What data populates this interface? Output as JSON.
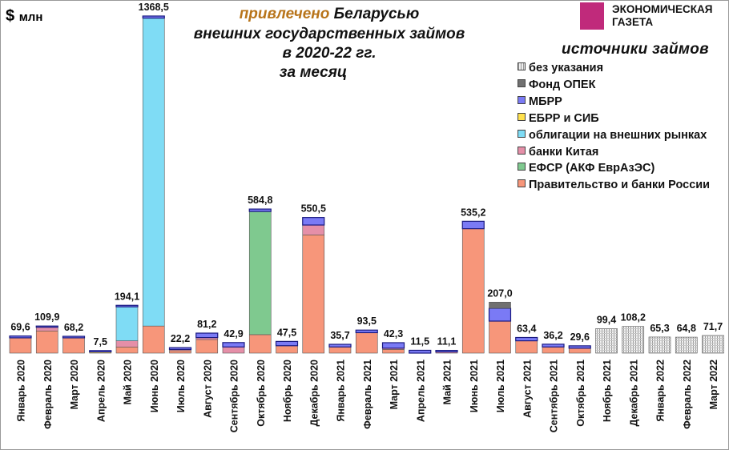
{
  "header": {
    "unit": "$",
    "unit_suffix": "млн",
    "title_highlight": "привлечено",
    "title_rest": "Беларусью",
    "title_line2": "внешних государственных займов",
    "title_line3": "в 2020-22 гг.",
    "title_line4": "за месяц",
    "logo": "ЭКОНОМИЧЕСКАЯ ГАЗЕТА",
    "logo_line1": "ЭКОНОМИЧЕСКАЯ",
    "logo_line2": "ГАЗЕТА"
  },
  "chart_data": {
    "type": "bar",
    "stacked": true,
    "title": "привлечено Беларусью внешних государственных займов в 2020-22 гг. за месяц",
    "ylabel": "$ млн",
    "legend_title": "источники займов",
    "legend_position": "right",
    "grid": false,
    "categories": [
      "Январь 2020",
      "Февраль 2020",
      "Март 2020",
      "Апрель 2020",
      "Май 2020",
      "Июнь 2020",
      "Июль 2020",
      "Август 2020",
      "Сентябрь 2020",
      "Октябрь 2020",
      "Ноябрь 2020",
      "Декабрь 2020",
      "Январь 2021",
      "Февраль 2021",
      "Март 2021",
      "Апрель 2021",
      "Май 2021",
      "Июнь 2021",
      "Июль 2021",
      "Август 2021",
      "Сентябрь 2021",
      "Октябрь 2021",
      "Ноябрь 2021",
      "Декабрь 2021",
      "Январь 2022",
      "Февраль 2022",
      "Март 2022"
    ],
    "totals": [
      "69,6",
      "109,9",
      "68,2",
      "7,5",
      "194,1",
      "1368,5",
      "22,2",
      "81,2",
      "42,9",
      "584,8",
      "47,5",
      "550,5",
      "35,7",
      "93,5",
      "42,3",
      "11,5",
      "11,1",
      "535,2",
      "207,0",
      "63,4",
      "36,2",
      "29,6",
      "99,4",
      "108,2",
      "65,3",
      "64,8",
      "71,7"
    ],
    "series": [
      {
        "name": "Правительство и банки России",
        "color": "#f7967a",
        "values": [
          62,
          90,
          62,
          0,
          25,
          110,
          10,
          55,
          0,
          75,
          30,
          480,
          25,
          83,
          15,
          0,
          0,
          505,
          130,
          50,
          25,
          20,
          0,
          0,
          0,
          0,
          0
        ]
      },
      {
        "name": "ЕФСР (АКФ ЕврАзЭС)",
        "color": "#7fc98f",
        "values": [
          0,
          0,
          0,
          0,
          0,
          0,
          0,
          0,
          0,
          500,
          0,
          0,
          0,
          0,
          0,
          0,
          0,
          0,
          0,
          0,
          0,
          0,
          0,
          0,
          0,
          0,
          0
        ]
      },
      {
        "name": "банки Китая",
        "color": "#e58fa8",
        "values": [
          0,
          15,
          0,
          0,
          25,
          0,
          5,
          8,
          25,
          0,
          0,
          40,
          0,
          0,
          5,
          0,
          5,
          0,
          0,
          0,
          0,
          0,
          0,
          0,
          0,
          0,
          0
        ]
      },
      {
        "name": "облигации на внешних рынках",
        "color": "#7fdcf5",
        "values": [
          0,
          0,
          0,
          0,
          138,
          1250,
          0,
          0,
          0,
          0,
          0,
          0,
          0,
          0,
          0,
          0,
          0,
          0,
          0,
          0,
          0,
          0,
          0,
          0,
          0,
          0,
          0
        ]
      },
      {
        "name": "ЕБРР и СИБ",
        "color": "#ffe14d",
        "values": [
          0,
          0,
          0,
          2,
          0,
          0,
          0,
          0,
          0,
          0,
          0,
          0,
          0,
          0,
          0,
          0,
          0,
          0,
          0,
          0,
          0,
          0,
          0,
          0,
          0,
          0,
          0
        ]
      },
      {
        "name": "МБРР",
        "color": "#7a7af5",
        "values": [
          7.6,
          4.9,
          6.2,
          5.5,
          6.1,
          8.5,
          7.2,
          18.2,
          17.9,
          9.8,
          17.5,
          30.5,
          10.7,
          10.5,
          22.3,
          11.5,
          6.1,
          30.2,
          52,
          13.4,
          11.2,
          9.6,
          0,
          0,
          0,
          0,
          0
        ]
      },
      {
        "name": "Фонд ОПЕК",
        "color": "#707070",
        "values": [
          0,
          0,
          0,
          0,
          0,
          0,
          0,
          0,
          0,
          0,
          0,
          0,
          0,
          0,
          0,
          0,
          0,
          0,
          25,
          0,
          0,
          0,
          0,
          0,
          0,
          0,
          0
        ]
      },
      {
        "name": "без указания",
        "color": "#d8d8d8",
        "values": [
          0,
          0,
          0,
          0,
          0,
          0,
          0,
          0,
          0,
          0,
          0,
          0,
          0,
          0,
          0,
          0,
          0,
          0,
          0,
          0,
          0,
          0,
          99.4,
          108.2,
          65.3,
          64.8,
          71.7
        ]
      }
    ],
    "legend_order": [
      "без указания",
      "Фонд ОПЕК",
      "МБРР",
      "ЕБРР и СИБ",
      "облигации на внешних рынках",
      "банки Китая",
      "ЕФСР (АКФ ЕврАзЭС)",
      "Правительство и банки России"
    ]
  }
}
